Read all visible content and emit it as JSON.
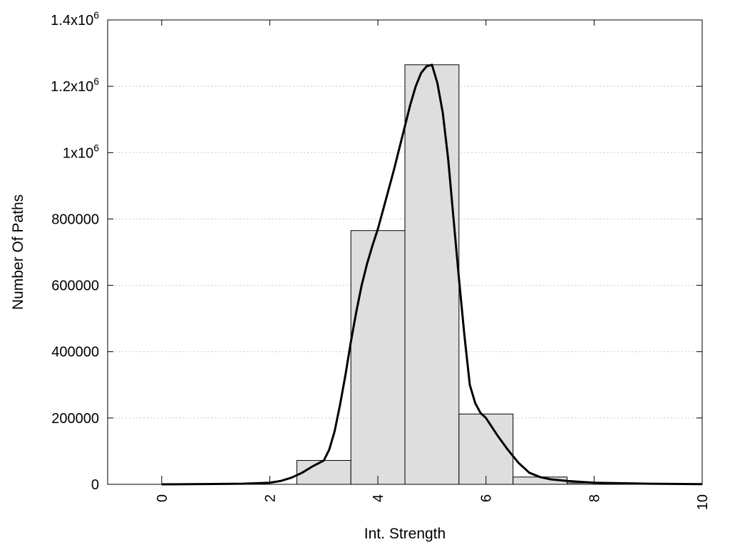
{
  "chart_data": {
    "type": "bar",
    "title": "",
    "xlabel": "Int. Strength",
    "ylabel": "Number Of Paths",
    "xlim": [
      -1,
      10
    ],
    "ylim": [
      0,
      1400000
    ],
    "grid": "horizontal dotted",
    "x_ticks": [
      {
        "value": 0,
        "label": "0"
      },
      {
        "value": 2,
        "label": "2"
      },
      {
        "value": 4,
        "label": "4"
      },
      {
        "value": 6,
        "label": "6"
      },
      {
        "value": 8,
        "label": "8"
      },
      {
        "value": 10,
        "label": "10"
      }
    ],
    "y_ticks": [
      {
        "value": 0,
        "base": "0",
        "exp": ""
      },
      {
        "value": 200000,
        "base": "200000",
        "exp": ""
      },
      {
        "value": 400000,
        "base": "400000",
        "exp": ""
      },
      {
        "value": 600000,
        "base": "600000",
        "exp": ""
      },
      {
        "value": 800000,
        "base": "800000",
        "exp": ""
      },
      {
        "value": 1000000,
        "base": "1x10",
        "exp": "6"
      },
      {
        "value": 1200000,
        "base": "1.2x10",
        "exp": "6"
      },
      {
        "value": 1400000,
        "base": "1.4x10",
        "exp": "6"
      }
    ],
    "bar_color": "#dedede",
    "bars": [
      {
        "x0": 2.5,
        "x1": 3.5,
        "value": 72000
      },
      {
        "x0": 3.5,
        "x1": 4.5,
        "value": 765000
      },
      {
        "x0": 4.5,
        "x1": 5.5,
        "value": 1265000
      },
      {
        "x0": 5.5,
        "x1": 6.5,
        "value": 212000
      },
      {
        "x0": 6.5,
        "x1": 7.5,
        "value": 22000
      },
      {
        "x0": 7.5,
        "x1": 8.5,
        "value": 4000
      }
    ],
    "curve": {
      "x": [
        0,
        1,
        1.5,
        2,
        2.2,
        2.4,
        2.6,
        2.8,
        3,
        3.1,
        3.2,
        3.3,
        3.4,
        3.5,
        3.6,
        3.7,
        3.8,
        3.9,
        4,
        4.1,
        4.2,
        4.3,
        4.4,
        4.5,
        4.6,
        4.7,
        4.8,
        4.9,
        5,
        5.1,
        5.2,
        5.3,
        5.4,
        5.5,
        5.6,
        5.7,
        5.8,
        5.9,
        6,
        6.2,
        6.4,
        6.6,
        6.8,
        7,
        7.2,
        7.5,
        8,
        9,
        10
      ],
      "y": [
        0,
        1000,
        2000,
        5000,
        10000,
        20000,
        35000,
        55000,
        72000,
        105000,
        160000,
        240000,
        330000,
        430000,
        520000,
        600000,
        665000,
        720000,
        770000,
        830000,
        890000,
        950000,
        1015000,
        1080000,
        1145000,
        1200000,
        1240000,
        1260000,
        1265000,
        1210000,
        1120000,
        980000,
        800000,
        620000,
        450000,
        300000,
        245000,
        215000,
        200000,
        150000,
        105000,
        65000,
        35000,
        22000,
        15000,
        10000,
        5000,
        2000,
        500
      ]
    }
  }
}
